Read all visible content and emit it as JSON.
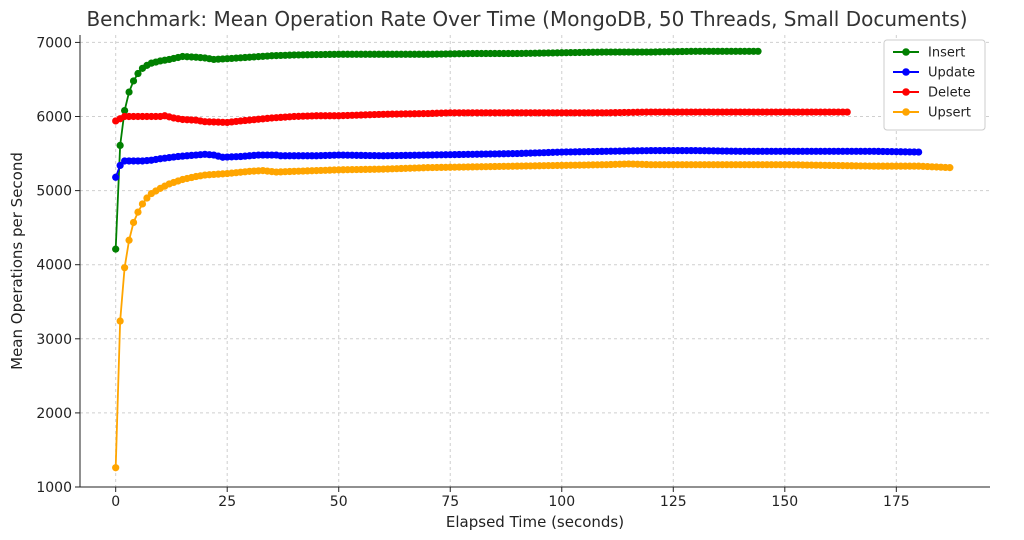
{
  "chart_data": {
    "type": "line",
    "title": "Benchmark: Mean Operation Rate Over Time (MongoDB, 50 Threads, Small Documents)",
    "xlabel": "Elapsed Time (seconds)",
    "ylabel": "Mean Operations per Second",
    "xlim": [
      -8,
      196
    ],
    "ylim": [
      1000,
      7100
    ],
    "xticks": [
      0,
      25,
      50,
      75,
      100,
      125,
      150,
      175
    ],
    "yticks": [
      1000,
      2000,
      3000,
      4000,
      5000,
      6000,
      7000
    ],
    "grid": true,
    "legend_position": "top-right",
    "series": [
      {
        "name": "Insert",
        "color": "#008000",
        "end_x": 144,
        "points": [
          [
            0,
            4210
          ],
          [
            1,
            5610
          ],
          [
            2,
            6080
          ],
          [
            3,
            6330
          ],
          [
            4,
            6480
          ],
          [
            5,
            6580
          ],
          [
            6,
            6650
          ],
          [
            7,
            6690
          ],
          [
            8,
            6720
          ],
          [
            10,
            6750
          ],
          [
            12,
            6770
          ],
          [
            15,
            6810
          ],
          [
            18,
            6800
          ],
          [
            20,
            6790
          ],
          [
            22,
            6770
          ],
          [
            25,
            6780
          ],
          [
            30,
            6800
          ],
          [
            35,
            6820
          ],
          [
            40,
            6830
          ],
          [
            50,
            6840
          ],
          [
            60,
            6840
          ],
          [
            70,
            6840
          ],
          [
            80,
            6850
          ],
          [
            90,
            6850
          ],
          [
            100,
            6860
          ],
          [
            110,
            6870
          ],
          [
            120,
            6870
          ],
          [
            130,
            6880
          ],
          [
            140,
            6880
          ],
          [
            144,
            6880
          ]
        ]
      },
      {
        "name": "Update",
        "color": "#0000ff",
        "end_x": 180,
        "points": [
          [
            0,
            5180
          ],
          [
            1,
            5340
          ],
          [
            2,
            5400
          ],
          [
            4,
            5400
          ],
          [
            6,
            5400
          ],
          [
            8,
            5410
          ],
          [
            10,
            5430
          ],
          [
            14,
            5460
          ],
          [
            18,
            5480
          ],
          [
            20,
            5490
          ],
          [
            22,
            5480
          ],
          [
            24,
            5450
          ],
          [
            28,
            5460
          ],
          [
            32,
            5480
          ],
          [
            36,
            5480
          ],
          [
            37,
            5470
          ],
          [
            45,
            5470
          ],
          [
            50,
            5480
          ],
          [
            60,
            5470
          ],
          [
            70,
            5480
          ],
          [
            80,
            5490
          ],
          [
            90,
            5500
          ],
          [
            100,
            5520
          ],
          [
            110,
            5530
          ],
          [
            120,
            5540
          ],
          [
            130,
            5540
          ],
          [
            140,
            5530
          ],
          [
            150,
            5530
          ],
          [
            160,
            5530
          ],
          [
            170,
            5530
          ],
          [
            180,
            5520
          ]
        ]
      },
      {
        "name": "Delete",
        "color": "#ff0000",
        "end_x": 164,
        "points": [
          [
            0,
            5940
          ],
          [
            1,
            5970
          ],
          [
            2,
            6000
          ],
          [
            4,
            6000
          ],
          [
            6,
            6000
          ],
          [
            8,
            6000
          ],
          [
            10,
            6000
          ],
          [
            11,
            6010
          ],
          [
            13,
            5980
          ],
          [
            15,
            5960
          ],
          [
            18,
            5950
          ],
          [
            20,
            5930
          ],
          [
            25,
            5920
          ],
          [
            28,
            5940
          ],
          [
            35,
            5980
          ],
          [
            40,
            6000
          ],
          [
            45,
            6010
          ],
          [
            50,
            6010
          ],
          [
            60,
            6030
          ],
          [
            70,
            6040
          ],
          [
            75,
            6050
          ],
          [
            80,
            6050
          ],
          [
            90,
            6050
          ],
          [
            100,
            6050
          ],
          [
            110,
            6050
          ],
          [
            120,
            6060
          ],
          [
            130,
            6060
          ],
          [
            140,
            6060
          ],
          [
            150,
            6060
          ],
          [
            160,
            6060
          ],
          [
            164,
            6060
          ]
        ]
      },
      {
        "name": "Upsert",
        "color": "#ffa500",
        "end_x": 187,
        "points": [
          [
            0,
            1260
          ],
          [
            1,
            3240
          ],
          [
            2,
            3960
          ],
          [
            3,
            4330
          ],
          [
            4,
            4570
          ],
          [
            5,
            4710
          ],
          [
            6,
            4820
          ],
          [
            7,
            4900
          ],
          [
            8,
            4960
          ],
          [
            10,
            5030
          ],
          [
            12,
            5090
          ],
          [
            15,
            5150
          ],
          [
            18,
            5190
          ],
          [
            20,
            5210
          ],
          [
            25,
            5230
          ],
          [
            30,
            5260
          ],
          [
            33,
            5270
          ],
          [
            36,
            5250
          ],
          [
            40,
            5260
          ],
          [
            45,
            5270
          ],
          [
            50,
            5280
          ],
          [
            60,
            5290
          ],
          [
            70,
            5310
          ],
          [
            80,
            5320
          ],
          [
            90,
            5330
          ],
          [
            100,
            5340
          ],
          [
            110,
            5350
          ],
          [
            115,
            5360
          ],
          [
            120,
            5350
          ],
          [
            130,
            5350
          ],
          [
            140,
            5350
          ],
          [
            150,
            5350
          ],
          [
            160,
            5340
          ],
          [
            170,
            5330
          ],
          [
            180,
            5330
          ],
          [
            187,
            5310
          ]
        ]
      }
    ]
  }
}
